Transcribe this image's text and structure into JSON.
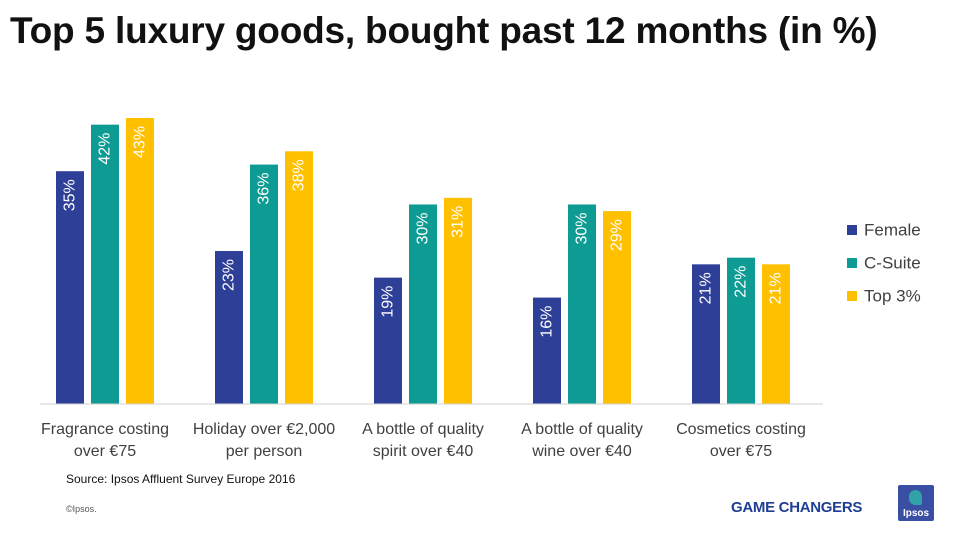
{
  "page": {
    "title": "Top 5 luxury goods, bought past 12 months (in %)",
    "source": "Source: Ipsos Affluent Survey Europe 2016",
    "copyright": "©Ipsos.",
    "brand": "GAME CHANGERS",
    "logo_text": "Ipsos"
  },
  "chart_data": {
    "type": "bar",
    "title": "Top 5 luxury goods, bought past 12 months (in %)",
    "categories": [
      [
        "Fragrance costing",
        "over €75"
      ],
      [
        "Holiday over €2,000",
        "per person"
      ],
      [
        "A bottle of quality",
        "spirit over €40"
      ],
      [
        "A bottle of quality",
        "wine over €40"
      ],
      [
        "Cosmetics costing",
        "over €75"
      ]
    ],
    "series": [
      {
        "name": "Female",
        "color": "#2e3f98",
        "values": [
          35,
          23,
          19,
          16,
          21
        ]
      },
      {
        "name": "C-Suite",
        "color": "#0d9b93",
        "values": [
          42,
          36,
          30,
          30,
          22
        ]
      },
      {
        "name": "Top 3%",
        "color": "#ffc000",
        "values": [
          43,
          38,
          31,
          29,
          21
        ]
      }
    ],
    "value_suffix": "%",
    "ylim": [
      0,
      43
    ],
    "legend": "right",
    "grid": false,
    "xlabel": "",
    "ylabel": ""
  }
}
